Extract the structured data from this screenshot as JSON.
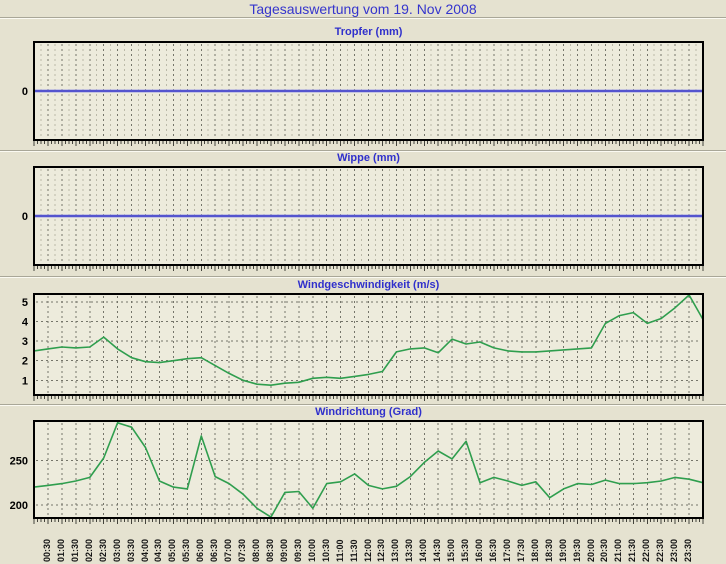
{
  "header": {
    "title": "Tagesauswertung vom 19. Nov 2008"
  },
  "colors": {
    "page_bg": "#e5e2d0",
    "plot_bg": "#edebdc",
    "grid_major": "#75756a",
    "grid_minor": "#bbb9a8",
    "border": "#000000",
    "title_blue": "#3030cc",
    "line_blue": "#3c3cc8",
    "line_blue_halo": "#9d9de2",
    "line_green": "#2f9e4e",
    "tick_color": "#44443c",
    "label_color": "#000000"
  },
  "x_axis": {
    "start": "00:00",
    "end": "24:00",
    "step_minutes": 30,
    "labels": [
      "00:30",
      "01:00",
      "01:30",
      "02:00",
      "02:30",
      "03:00",
      "03:30",
      "04:00",
      "04:30",
      "05:00",
      "05:30",
      "06:00",
      "06:30",
      "07:00",
      "07:30",
      "08:00",
      "08:30",
      "09:00",
      "09:30",
      "10:00",
      "10:30",
      "11:00",
      "11:30",
      "12:00",
      "12:30",
      "13:00",
      "13:30",
      "14:00",
      "14:30",
      "15:00",
      "15:30",
      "16:00",
      "16:30",
      "17:00",
      "17:30",
      "18:00",
      "18:30",
      "19:00",
      "19:30",
      "20:00",
      "20:30",
      "21:00",
      "21:30",
      "22:00",
      "22:30",
      "23:00",
      "23:30"
    ]
  },
  "chart_data": [
    {
      "type": "line",
      "title": "Tropfer (mm)",
      "ylabel": "mm",
      "y_ticks": [
        0
      ],
      "ylim": [
        -1,
        1
      ],
      "sample_interval_minutes": 30,
      "line_color_key": "line_blue",
      "values": [
        0,
        0,
        0,
        0,
        0,
        0,
        0,
        0,
        0,
        0,
        0,
        0,
        0,
        0,
        0,
        0,
        0,
        0,
        0,
        0,
        0,
        0,
        0,
        0,
        0,
        0,
        0,
        0,
        0,
        0,
        0,
        0,
        0,
        0,
        0,
        0,
        0,
        0,
        0,
        0,
        0,
        0,
        0,
        0,
        0,
        0,
        0,
        0,
        0
      ]
    },
    {
      "type": "line",
      "title": "Wippe (mm)",
      "ylabel": "mm",
      "y_ticks": [
        0
      ],
      "ylim": [
        -1,
        1
      ],
      "sample_interval_minutes": 30,
      "line_color_key": "line_blue",
      "values": [
        0,
        0,
        0,
        0,
        0,
        0,
        0,
        0,
        0,
        0,
        0,
        0,
        0,
        0,
        0,
        0,
        0,
        0,
        0,
        0,
        0,
        0,
        0,
        0,
        0,
        0,
        0,
        0,
        0,
        0,
        0,
        0,
        0,
        0,
        0,
        0,
        0,
        0,
        0,
        0,
        0,
        0,
        0,
        0,
        0,
        0,
        0,
        0,
        0
      ]
    },
    {
      "type": "line",
      "title": "Windgeschwindigkeit (m/s)",
      "ylabel": "m/s",
      "y_ticks": [
        1,
        2,
        3,
        4,
        5
      ],
      "ylim": [
        0.25,
        5.4
      ],
      "sample_interval_minutes": 30,
      "line_color_key": "line_green",
      "values": [
        2.5,
        2.6,
        2.7,
        2.65,
        2.7,
        3.2,
        2.6,
        2.15,
        1.95,
        1.9,
        2.0,
        2.1,
        2.15,
        1.75,
        1.35,
        1.0,
        0.8,
        0.75,
        0.85,
        0.9,
        1.1,
        1.15,
        1.1,
        1.2,
        1.3,
        1.45,
        2.45,
        2.6,
        2.65,
        2.4,
        3.1,
        2.85,
        2.95,
        2.65,
        2.5,
        2.45,
        2.45,
        2.5,
        2.55,
        2.6,
        2.65,
        3.9,
        4.3,
        4.45,
        3.9,
        4.15,
        4.7,
        5.35,
        4.1
      ]
    },
    {
      "type": "line",
      "title": "Windrichtung (Grad)",
      "ylabel": "Grad",
      "y_ticks": [
        200,
        250
      ],
      "ylim": [
        185,
        295
      ],
      "sample_interval_minutes": 30,
      "line_color_key": "line_green",
      "values": [
        220,
        222,
        224,
        227,
        231,
        253,
        293,
        288,
        265,
        227,
        220,
        218,
        278,
        232,
        224,
        212,
        196,
        186,
        214,
        215,
        196,
        224,
        226,
        235,
        222,
        218,
        221,
        232,
        248,
        261,
        252,
        272,
        225,
        231,
        227,
        222,
        226,
        208,
        218,
        224,
        223,
        228,
        224,
        224,
        225,
        227,
        231,
        229,
        225
      ]
    }
  ]
}
